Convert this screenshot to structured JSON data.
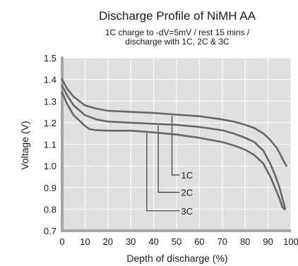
{
  "chart_data": {
    "type": "line",
    "title": "Discharge Profile of NiMH AA",
    "subtitle_lines": [
      "1C charge to -dV=5mV / rest 15 mins /",
      "discharge with 1C, 2C & 3C"
    ],
    "xlabel": "Depth of discharge (%)",
    "ylabel": "Voltage (V)",
    "xlim": [
      0,
      100
    ],
    "ylim": [
      0.7,
      1.5
    ],
    "x_ticks": [
      "0",
      "10",
      "20",
      "30",
      "40",
      "50",
      "60",
      "70",
      "80",
      "90",
      "100"
    ],
    "y_ticks": [
      "0.7",
      "0.8",
      "0.9",
      "1.0",
      "1.1",
      "1.2",
      "1.3",
      "1.4",
      "1.5"
    ],
    "grid": true,
    "colors": {
      "grid": "#ffffff",
      "frame": "#a6a6a6",
      "curve": "#666666",
      "leader": "#3a3a3a"
    },
    "series": [
      {
        "name": "1C",
        "x": [
          0,
          2,
          5,
          10,
          15,
          20,
          30,
          40,
          50,
          60,
          70,
          75,
          80,
          84,
          88,
          91,
          94,
          96,
          98
        ],
        "y": [
          1.4,
          1.36,
          1.32,
          1.28,
          1.265,
          1.255,
          1.25,
          1.245,
          1.237,
          1.23,
          1.215,
          1.205,
          1.19,
          1.175,
          1.15,
          1.12,
          1.08,
          1.04,
          1.0
        ],
        "callout_at_x": 48,
        "callout_label_y": 0.958
      },
      {
        "name": "2C",
        "x": [
          0,
          2,
          5,
          10,
          15,
          20,
          30,
          40,
          50,
          60,
          70,
          75,
          80,
          84,
          88,
          91,
          93,
          95,
          96.5,
          97.5
        ],
        "y": [
          1.37,
          1.33,
          1.28,
          1.235,
          1.215,
          1.205,
          1.2,
          1.195,
          1.19,
          1.18,
          1.165,
          1.15,
          1.13,
          1.11,
          1.07,
          1.01,
          0.96,
          0.9,
          0.84,
          0.8
        ],
        "callout_at_x": 42,
        "callout_label_y": 0.878
      },
      {
        "name": "3C",
        "x": [
          0,
          2,
          5,
          10,
          12,
          15,
          20,
          30,
          40,
          50,
          60,
          70,
          75,
          80,
          84,
          88,
          91,
          93,
          95,
          96.2,
          97
        ],
        "y": [
          1.34,
          1.29,
          1.235,
          1.185,
          1.17,
          1.165,
          1.163,
          1.163,
          1.155,
          1.145,
          1.13,
          1.11,
          1.095,
          1.075,
          1.05,
          1.01,
          0.95,
          0.9,
          0.85,
          0.81,
          0.8
        ],
        "callout_at_x": 37,
        "callout_label_y": 0.792
      }
    ]
  }
}
